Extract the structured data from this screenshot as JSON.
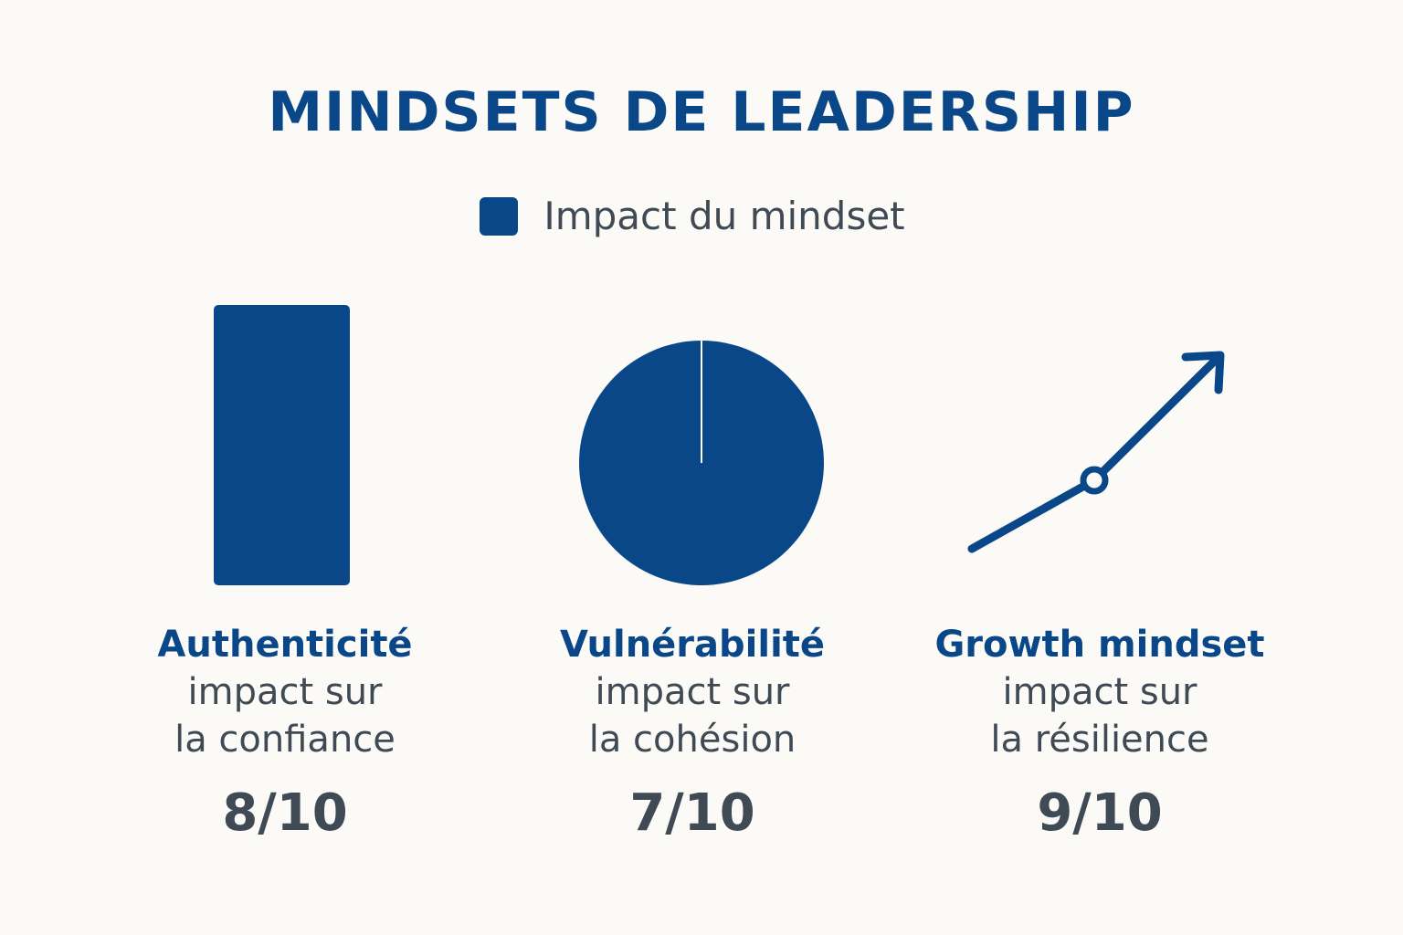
{
  "chart_data": {
    "type": "other",
    "title": "MINDSETS DE LEADERSHIP",
    "legend": [
      {
        "label": "Impact du mindset",
        "color": "#0a4788"
      }
    ],
    "categories": [
      "Authenticité",
      "Vulnérabilité",
      "Growth mindset"
    ],
    "items": [
      {
        "name": "Authenticité",
        "desc_line1": "impact sur",
        "desc_line2": "la confiance",
        "score": 8,
        "max": 10,
        "score_label": "8/10",
        "icon": "bar-shape"
      },
      {
        "name": "Vulnérabilité",
        "desc_line1": "impact sur",
        "desc_line2": "la cohésion",
        "score": 7,
        "max": 10,
        "score_label": "7/10",
        "icon": "pie-shape"
      },
      {
        "name": "Growth mindset",
        "desc_line1": "impact sur",
        "desc_line2": "la résilience",
        "score": 9,
        "max": 10,
        "score_label": "9/10",
        "icon": "growth-arrow"
      }
    ]
  }
}
